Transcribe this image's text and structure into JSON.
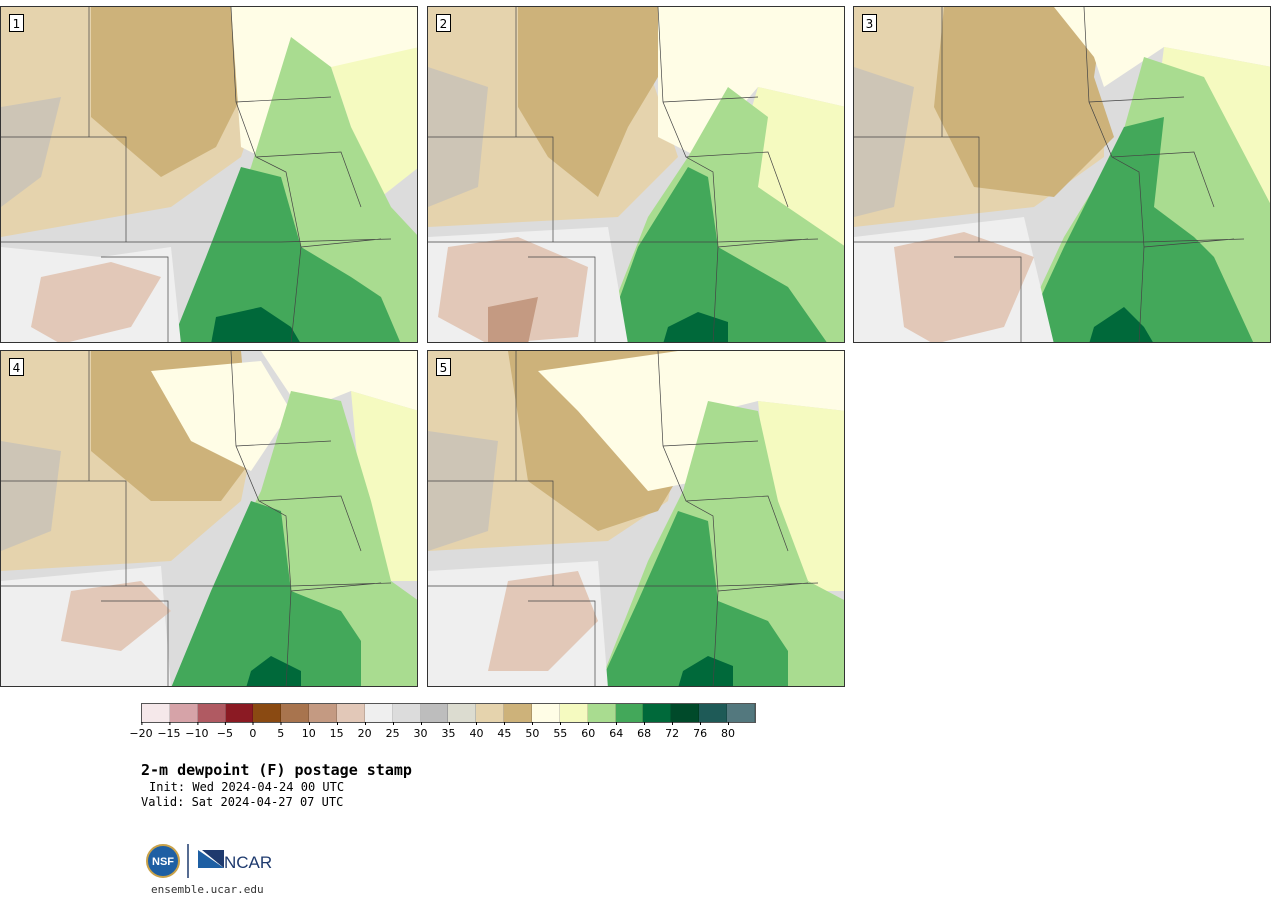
{
  "panels": [
    {
      "label": "1"
    },
    {
      "label": "2"
    },
    {
      "label": "3"
    },
    {
      "label": "4"
    },
    {
      "label": "5"
    }
  ],
  "colorbar": {
    "colors": [
      "#f5e8ea",
      "#d6a3a8",
      "#b05a62",
      "#8b1a23",
      "#8a4a12",
      "#a8744e",
      "#c49a82",
      "#e2c8b8",
      "#efefef",
      "#dcdcdc",
      "#bdbdbd",
      "#dcdcd0",
      "#e5d3ad",
      "#cdb27a",
      "#fffde6",
      "#f5fac0",
      "#a9dc90",
      "#43a85a",
      "#00693a",
      "#004a2a",
      "#1e5a57",
      "#53787e"
    ],
    "ticks": [
      "−20",
      "−15",
      "−10",
      "−5",
      "0",
      "5",
      "10",
      "15",
      "20",
      "25",
      "30",
      "35",
      "40",
      "45",
      "50",
      "55",
      "60",
      "64",
      "68",
      "72",
      "76",
      "80"
    ]
  },
  "title": "2-m dewpoint (F) postage stamp",
  "init": "Init: Wed 2024-04-24 00 UTC",
  "valid": "Valid: Sat 2024-04-27 07 UTC",
  "url": "ensemble.ucar.edu",
  "logos": {
    "nsf": "NSF",
    "ncar": "NCAR"
  }
}
